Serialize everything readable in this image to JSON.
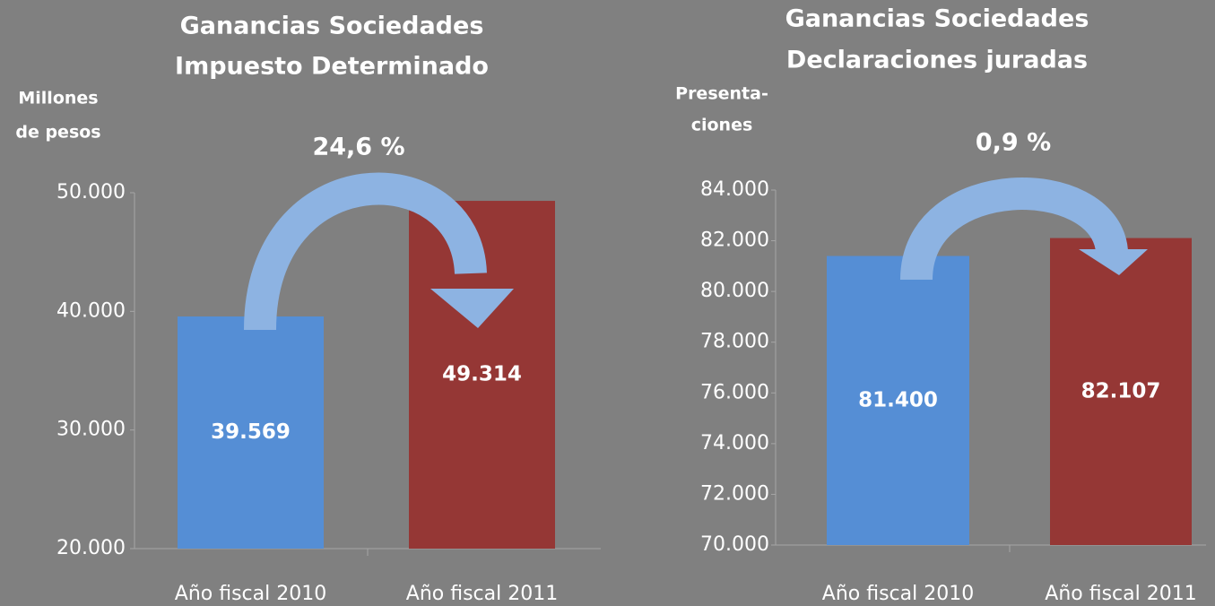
{
  "chart_data": [
    {
      "type": "bar",
      "title": [
        "Ganancias Sociedades",
        "Impuesto Determinado"
      ],
      "y_label": [
        "Millones",
        "de pesos"
      ],
      "annotation": "24,6 %",
      "categories": [
        "Año fiscal 2010",
        "Año fiscal 2011"
      ],
      "series": [
        {
          "name": null,
          "colors": [
            "#558ed5",
            "#953735"
          ],
          "values": [
            39569,
            49314
          ],
          "value_labels": [
            "39.569",
            "49.314"
          ]
        }
      ],
      "ylim": [
        20000,
        50000
      ],
      "yticks": [
        {
          "value": 20000,
          "label": "20.000"
        },
        {
          "value": 30000,
          "label": "30.000"
        },
        {
          "value": 40000,
          "label": "40.000"
        },
        {
          "value": 50000,
          "label": "50.000"
        }
      ]
    },
    {
      "type": "bar",
      "title": [
        "Ganancias Sociedades",
        "Declaraciones juradas"
      ],
      "y_label": [
        "Presenta-",
        "ciones"
      ],
      "annotation": "0,9 %",
      "categories": [
        "Año fiscal 2010",
        "Año fiscal 2011"
      ],
      "series": [
        {
          "name": null,
          "colors": [
            "#558ed5",
            "#953735"
          ],
          "values": [
            81400,
            82107
          ],
          "value_labels": [
            "81.400",
            "82.107"
          ]
        }
      ],
      "ylim": [
        70000,
        84000
      ],
      "yticks": [
        {
          "value": 70000,
          "label": "70.000"
        },
        {
          "value": 72000,
          "label": "72.000"
        },
        {
          "value": 74000,
          "label": "74.000"
        },
        {
          "value": 76000,
          "label": "76.000"
        },
        {
          "value": 78000,
          "label": "78.000"
        },
        {
          "value": 80000,
          "label": "80.000"
        },
        {
          "value": 82000,
          "label": "82.000"
        },
        {
          "value": 84000,
          "label": "84.000"
        }
      ]
    }
  ]
}
